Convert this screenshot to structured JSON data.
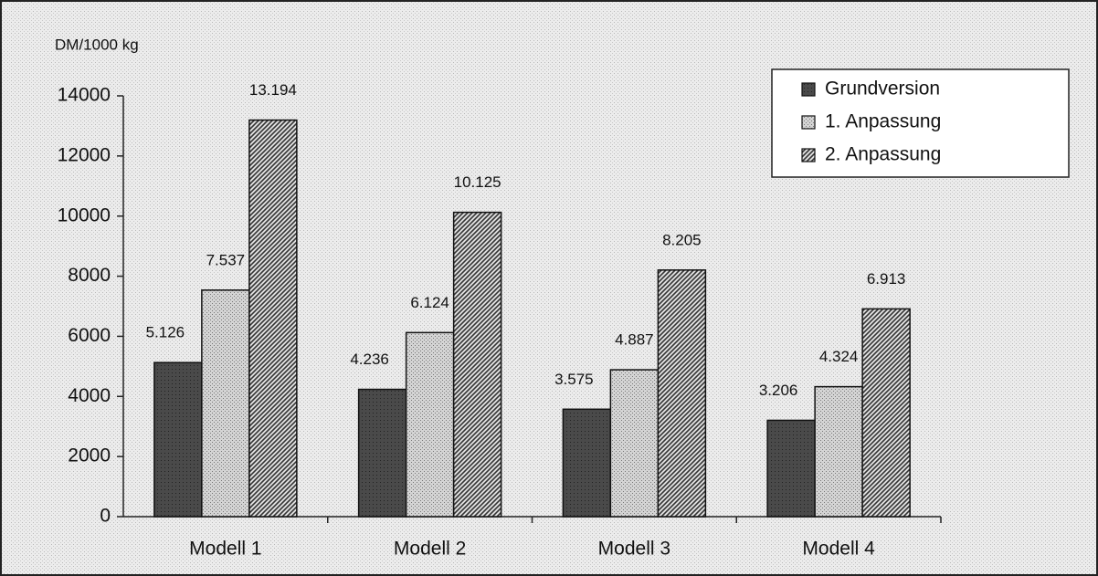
{
  "chart_data": {
    "type": "bar",
    "y_label": "DM/1000 kg",
    "categories": [
      "Modell 1",
      "Modell 2",
      "Modell 3",
      "Modell 4"
    ],
    "series": [
      {
        "name": "Grundversion",
        "color": "#4a4a4a",
        "values": [
          5126,
          4236,
          3575,
          3206
        ],
        "value_labels": [
          "5.126",
          "4.236",
          "3.575",
          "3.206"
        ]
      },
      {
        "name": "1. Anpassung",
        "color": "#d4d4d4",
        "values": [
          7537,
          6124,
          4887,
          4324
        ],
        "value_labels": [
          "7.537",
          "6.124",
          "4.887",
          "4.324"
        ]
      },
      {
        "name": "2. Anpassung",
        "color": "#8c8c8c",
        "values": [
          13194,
          10125,
          8205,
          6913
        ],
        "value_labels": [
          "13.194",
          "10.125",
          "8.205",
          "6.913"
        ]
      }
    ],
    "ylim": [
      0,
      14000
    ],
    "yticks": [
      0,
      2000,
      4000,
      6000,
      8000,
      10000,
      12000,
      14000
    ],
    "grid": false,
    "legend": "top-right"
  }
}
